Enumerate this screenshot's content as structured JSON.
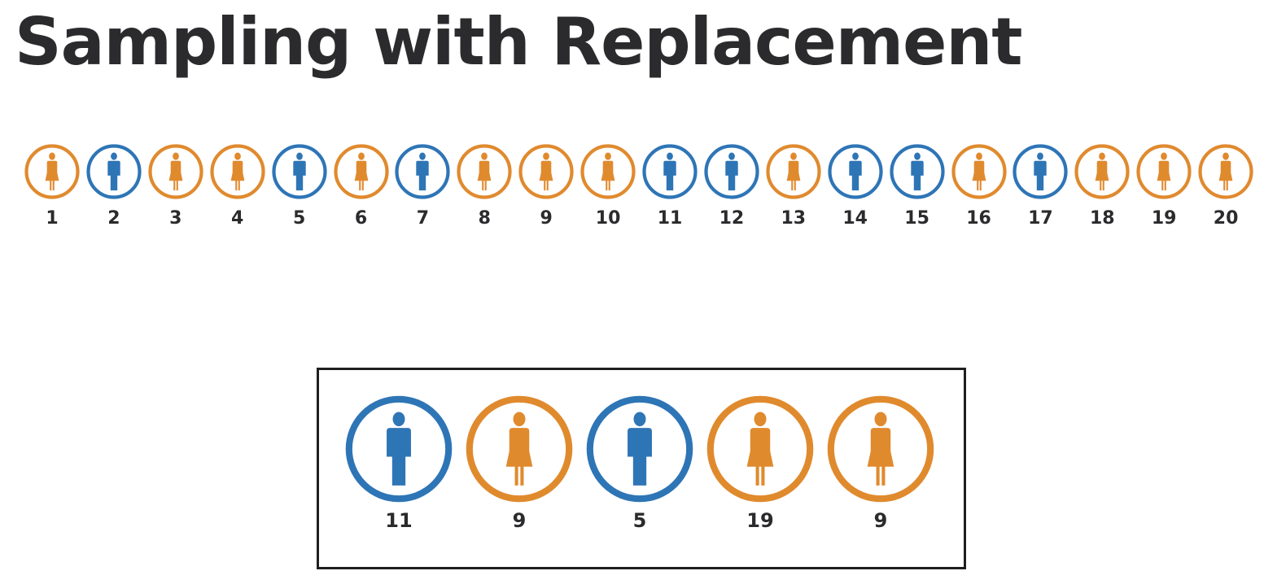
{
  "title": "Sampling with Replacement",
  "colors": {
    "male": "#2e75b6",
    "female": "#e08a2e",
    "text": "#2b2b2e"
  },
  "population": [
    {
      "label": "1",
      "sex": "female"
    },
    {
      "label": "2",
      "sex": "male"
    },
    {
      "label": "3",
      "sex": "female"
    },
    {
      "label": "4",
      "sex": "female"
    },
    {
      "label": "5",
      "sex": "male"
    },
    {
      "label": "6",
      "sex": "female"
    },
    {
      "label": "7",
      "sex": "male"
    },
    {
      "label": "8",
      "sex": "female"
    },
    {
      "label": "9",
      "sex": "female"
    },
    {
      "label": "10",
      "sex": "female"
    },
    {
      "label": "11",
      "sex": "male"
    },
    {
      "label": "12",
      "sex": "male"
    },
    {
      "label": "13",
      "sex": "female"
    },
    {
      "label": "14",
      "sex": "male"
    },
    {
      "label": "15",
      "sex": "male"
    },
    {
      "label": "16",
      "sex": "female"
    },
    {
      "label": "17",
      "sex": "male"
    },
    {
      "label": "18",
      "sex": "female"
    },
    {
      "label": "19",
      "sex": "female"
    },
    {
      "label": "20",
      "sex": "female"
    }
  ],
  "sample": [
    {
      "label": "11",
      "sex": "male"
    },
    {
      "label": "9",
      "sex": "female"
    },
    {
      "label": "5",
      "sex": "male"
    },
    {
      "label": "19",
      "sex": "female"
    },
    {
      "label": "9",
      "sex": "female"
    }
  ]
}
